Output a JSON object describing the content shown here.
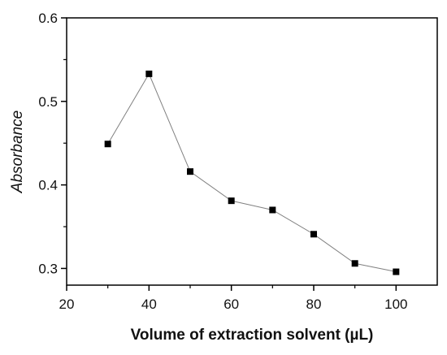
{
  "chart_data": {
    "type": "line",
    "xlabel": "Volume of extraction solvent (µL)",
    "ylabel": "Absorbance",
    "xlim": [
      20,
      110
    ],
    "ylim": [
      0.28,
      0.6
    ],
    "xticks": [
      20,
      40,
      60,
      80,
      100
    ],
    "yticks": [
      0.3,
      0.4,
      0.5,
      0.6
    ],
    "xtick_labels": [
      "20",
      "40",
      "60",
      "80",
      "100"
    ],
    "ytick_labels": [
      "0.3",
      "0.4",
      "0.5",
      "0.6"
    ],
    "grid": false,
    "series": [
      {
        "x": [
          30,
          40,
          50,
          60,
          70,
          80,
          90,
          100
        ],
        "values": [
          0.449,
          0.533,
          0.416,
          0.381,
          0.37,
          0.341,
          0.306,
          0.296
        ],
        "marker": "square",
        "color": "#000000",
        "line_color": "#808080"
      }
    ]
  }
}
